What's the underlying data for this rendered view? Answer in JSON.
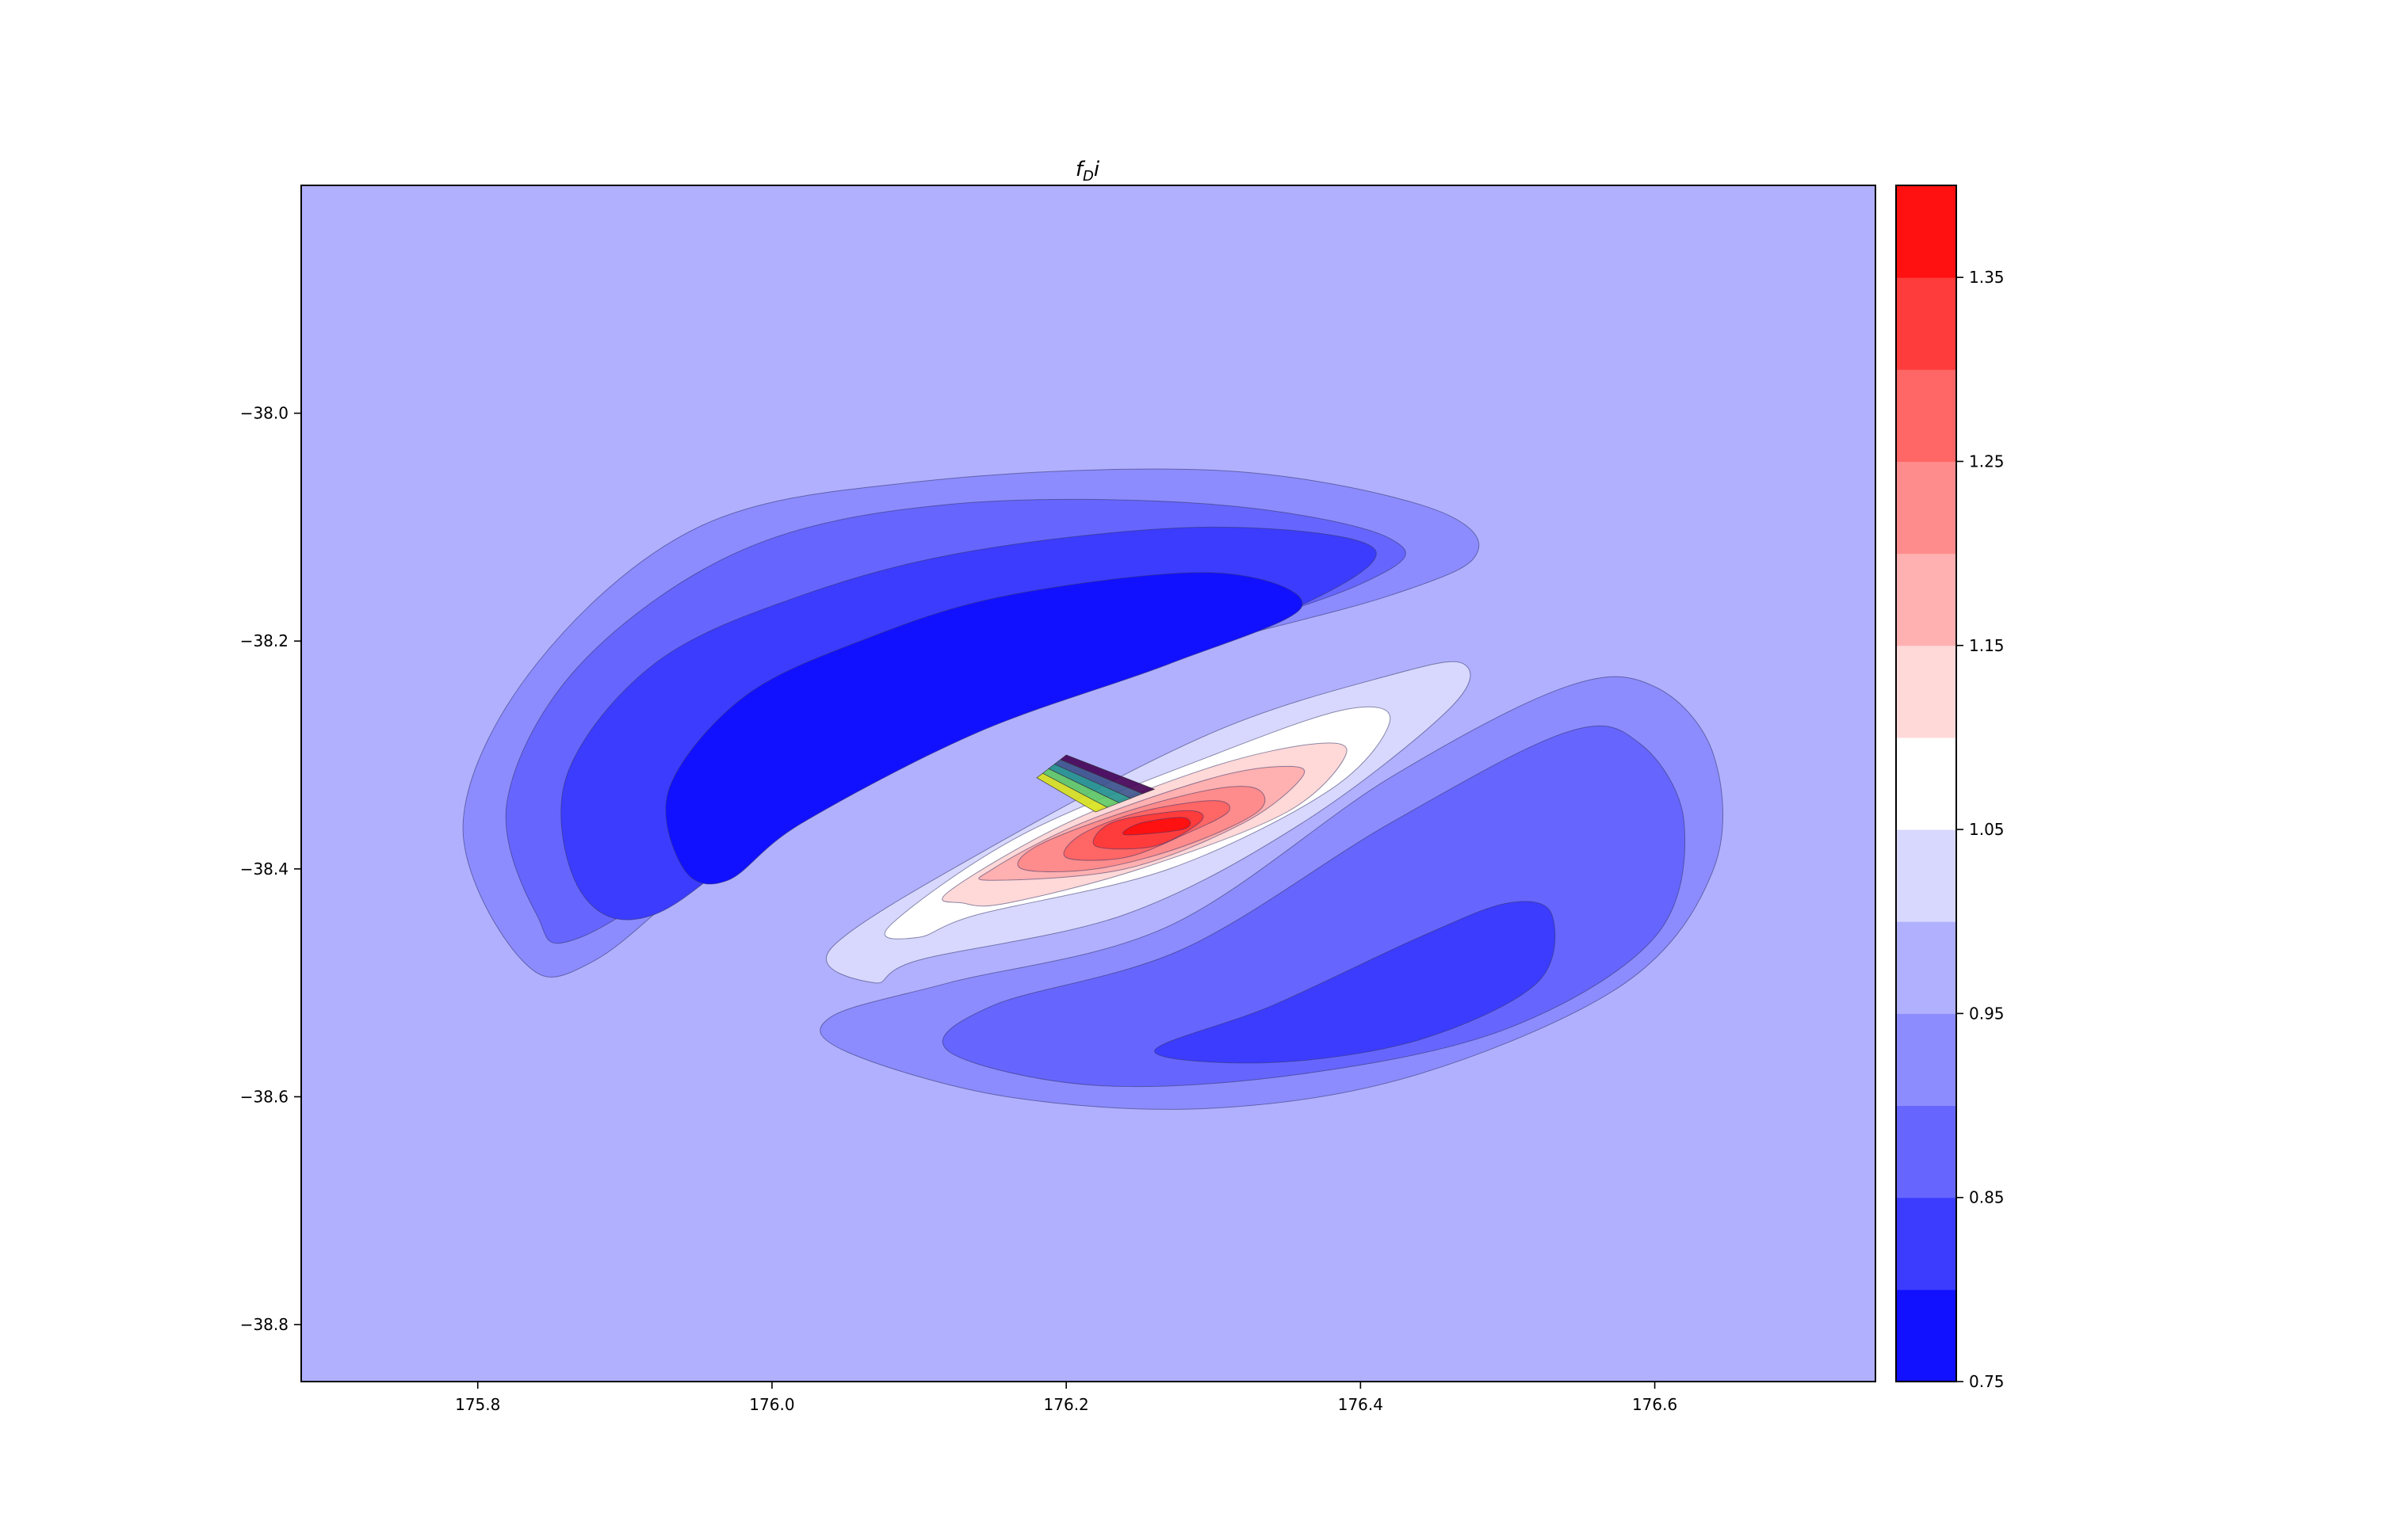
{
  "chart_data": {
    "type": "contour",
    "title_main": "f",
    "title_sub": "D",
    "title_suffix": "i",
    "xlabel": "",
    "ylabel": "",
    "xlim": [
      175.68,
      176.75
    ],
    "ylim": [
      -38.85,
      -37.8
    ],
    "x_ticks": [
      175.8,
      176.0,
      176.2,
      176.4,
      176.6
    ],
    "x_tick_labels": [
      "175.8",
      "176.0",
      "176.2",
      "176.4",
      "176.6"
    ],
    "y_ticks": [
      -38.0,
      -38.2,
      -38.4,
      -38.6,
      -38.8
    ],
    "y_tick_labels": [
      "−38.0",
      "−38.2",
      "−38.4",
      "−38.6",
      "−38.8"
    ],
    "background_level": 0.975,
    "colorbar": {
      "range": [
        0.75,
        1.4
      ],
      "levels": [
        0.75,
        0.8,
        0.85,
        0.9,
        0.95,
        1.0,
        1.05,
        1.1,
        1.15,
        1.2,
        1.25,
        1.3,
        1.35,
        1.4
      ],
      "colors": [
        "#1111ff",
        "#3c3cff",
        "#6666ff",
        "#8c8cff",
        "#b0b0ff",
        "#d8d8ff",
        "#ffffff",
        "#ffd8d8",
        "#ffb0b0",
        "#ff8c8c",
        "#ff6666",
        "#ff3c3c",
        "#ff1111"
      ],
      "tick_values": [
        0.75,
        0.85,
        0.95,
        1.05,
        1.15,
        1.25,
        1.35
      ],
      "tick_labels": [
        "0.75",
        "0.85",
        "0.95",
        "1.05",
        "1.15",
        "1.25",
        "1.35"
      ]
    },
    "contour_regions": [
      {
        "level": 0.925,
        "color": "#8c8cff",
        "points": [
          [
            175.95,
            -38.1
          ],
          [
            176.1,
            -38.06
          ],
          [
            176.3,
            -38.05
          ],
          [
            176.44,
            -38.08
          ],
          [
            176.48,
            -38.12
          ],
          [
            176.42,
            -38.16
          ],
          [
            176.2,
            -38.24
          ],
          [
            176.0,
            -38.36
          ],
          [
            175.88,
            -38.48
          ],
          [
            175.83,
            -38.48
          ],
          [
            175.79,
            -38.36
          ],
          [
            175.84,
            -38.22
          ]
        ]
      },
      {
        "level": 0.875,
        "color": "#6666ff",
        "points": [
          [
            175.98,
            -38.12
          ],
          [
            176.12,
            -38.08
          ],
          [
            176.3,
            -38.08
          ],
          [
            176.42,
            -38.11
          ],
          [
            176.4,
            -38.15
          ],
          [
            176.2,
            -38.24
          ],
          [
            176.0,
            -38.36
          ],
          [
            175.87,
            -38.46
          ],
          [
            175.84,
            -38.44
          ],
          [
            175.82,
            -38.34
          ],
          [
            175.87,
            -38.22
          ]
        ]
      },
      {
        "level": 0.825,
        "color": "#3c3cff",
        "points": [
          [
            176.02,
            -38.16
          ],
          [
            176.14,
            -38.12
          ],
          [
            176.3,
            -38.1
          ],
          [
            176.41,
            -38.12
          ],
          [
            176.34,
            -38.18
          ],
          [
            176.18,
            -38.25
          ],
          [
            176.02,
            -38.35
          ],
          [
            175.92,
            -38.44
          ],
          [
            175.87,
            -38.42
          ],
          [
            175.86,
            -38.32
          ],
          [
            175.92,
            -38.22
          ]
        ]
      },
      {
        "level": 0.775,
        "color": "#1111ff",
        "points": [
          [
            176.06,
            -38.2
          ],
          [
            176.16,
            -38.16
          ],
          [
            176.3,
            -38.14
          ],
          [
            176.36,
            -38.17
          ],
          [
            176.27,
            -38.22
          ],
          [
            176.14,
            -38.28
          ],
          [
            176.02,
            -38.36
          ],
          [
            175.97,
            -38.41
          ],
          [
            175.94,
            -38.4
          ],
          [
            175.93,
            -38.33
          ],
          [
            175.98,
            -38.25
          ]
        ]
      },
      {
        "level": 0.925,
        "color": "#8c8cff",
        "points": [
          [
            176.27,
            -38.45
          ],
          [
            176.42,
            -38.32
          ],
          [
            176.54,
            -38.24
          ],
          [
            176.6,
            -38.24
          ],
          [
            176.64,
            -38.3
          ],
          [
            176.64,
            -38.4
          ],
          [
            176.58,
            -38.5
          ],
          [
            176.44,
            -38.58
          ],
          [
            176.3,
            -38.61
          ],
          [
            176.16,
            -38.6
          ],
          [
            176.05,
            -38.56
          ],
          [
            176.04,
            -38.53
          ],
          [
            176.12,
            -38.5
          ]
        ]
      },
      {
        "level": 0.875,
        "color": "#6666ff",
        "points": [
          [
            176.28,
            -38.47
          ],
          [
            176.42,
            -38.36
          ],
          [
            176.54,
            -38.28
          ],
          [
            176.59,
            -38.29
          ],
          [
            176.62,
            -38.36
          ],
          [
            176.6,
            -38.46
          ],
          [
            176.5,
            -38.54
          ],
          [
            176.36,
            -38.58
          ],
          [
            176.22,
            -38.59
          ],
          [
            176.12,
            -38.56
          ],
          [
            176.15,
            -38.52
          ]
        ]
      },
      {
        "level": 0.825,
        "color": "#3c3cff",
        "points": [
          [
            176.34,
            -38.52
          ],
          [
            176.44,
            -38.46
          ],
          [
            176.5,
            -38.43
          ],
          [
            176.53,
            -38.44
          ],
          [
            176.52,
            -38.5
          ],
          [
            176.44,
            -38.55
          ],
          [
            176.34,
            -38.57
          ],
          [
            176.26,
            -38.56
          ]
        ]
      },
      {
        "level": 1.025,
        "color": "#d8d8ff",
        "points": [
          [
            176.07,
            -38.5
          ],
          [
            176.04,
            -38.47
          ],
          [
            176.15,
            -38.38
          ],
          [
            176.3,
            -38.28
          ],
          [
            176.42,
            -38.23
          ],
          [
            176.47,
            -38.22
          ],
          [
            176.46,
            -38.26
          ],
          [
            176.36,
            -38.36
          ],
          [
            176.24,
            -38.44
          ],
          [
            176.1,
            -38.48
          ]
        ]
      },
      {
        "level": 1.075,
        "color": "#ffffff",
        "points": [
          [
            176.1,
            -38.46
          ],
          [
            176.08,
            -38.45
          ],
          [
            176.17,
            -38.37
          ],
          [
            176.3,
            -38.3
          ],
          [
            176.39,
            -38.26
          ],
          [
            176.42,
            -38.27
          ],
          [
            176.38,
            -38.33
          ],
          [
            176.27,
            -38.4
          ],
          [
            176.14,
            -38.44
          ]
        ]
      },
      {
        "level": 1.125,
        "color": "#ffd8d8",
        "points": [
          [
            176.13,
            -38.43
          ],
          [
            176.12,
            -38.42
          ],
          [
            176.2,
            -38.36
          ],
          [
            176.3,
            -38.31
          ],
          [
            176.37,
            -38.29
          ],
          [
            176.39,
            -38.3
          ],
          [
            176.35,
            -38.35
          ],
          [
            176.25,
            -38.4
          ],
          [
            176.16,
            -38.43
          ]
        ]
      },
      {
        "level": 1.175,
        "color": "#ffb0b0",
        "points": [
          [
            176.15,
            -38.41
          ],
          [
            176.15,
            -38.4
          ],
          [
            176.21,
            -38.36
          ],
          [
            176.3,
            -38.32
          ],
          [
            176.35,
            -38.31
          ],
          [
            176.36,
            -38.32
          ],
          [
            176.32,
            -38.36
          ],
          [
            176.24,
            -38.4
          ]
        ]
      },
      {
        "level": 1.225,
        "color": "#ff8c8c",
        "points": [
          [
            176.17,
            -38.4
          ],
          [
            176.18,
            -38.38
          ],
          [
            176.24,
            -38.35
          ],
          [
            176.3,
            -38.33
          ],
          [
            176.33,
            -38.33
          ],
          [
            176.33,
            -38.35
          ],
          [
            176.28,
            -38.38
          ],
          [
            176.22,
            -38.4
          ]
        ]
      },
      {
        "level": 1.275,
        "color": "#ff6666",
        "points": [
          [
            176.2,
            -38.39
          ],
          [
            176.21,
            -38.37
          ],
          [
            176.25,
            -38.35
          ],
          [
            176.3,
            -38.34
          ],
          [
            176.31,
            -38.35
          ],
          [
            176.28,
            -38.37
          ],
          [
            176.24,
            -38.39
          ]
        ]
      },
      {
        "level": 1.325,
        "color": "#ff3c3c",
        "points": [
          [
            176.22,
            -38.38
          ],
          [
            176.23,
            -38.36
          ],
          [
            176.27,
            -38.35
          ],
          [
            176.29,
            -38.35
          ],
          [
            176.29,
            -38.36
          ],
          [
            176.26,
            -38.38
          ]
        ]
      },
      {
        "level": 1.375,
        "color": "#ff1111",
        "points": [
          [
            176.24,
            -38.37
          ],
          [
            176.25,
            -38.36
          ],
          [
            176.28,
            -38.355
          ],
          [
            176.28,
            -38.365
          ]
        ]
      }
    ],
    "fault_patch": {
      "colors": [
        "#d8e219",
        "#5ec962",
        "#21918c",
        "#3b528b",
        "#440154"
      ],
      "corners": [
        [
          176.18,
          -38.32
        ],
        [
          176.2,
          -38.3
        ],
        [
          176.26,
          -38.33
        ],
        [
          176.22,
          -38.35
        ]
      ]
    }
  }
}
